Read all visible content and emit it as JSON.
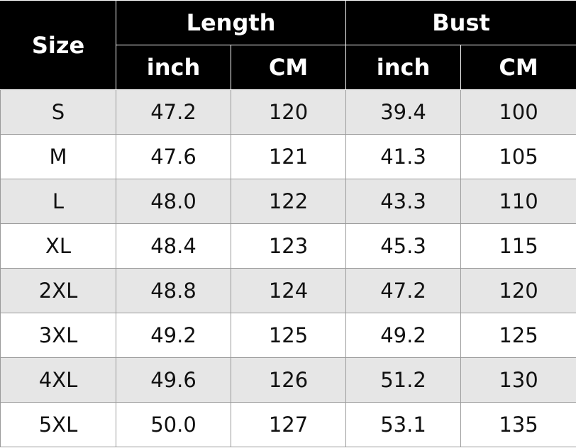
{
  "header": {
    "size": "Size",
    "groups": [
      "Length",
      "Bust"
    ],
    "units": [
      "inch",
      "CM",
      "inch",
      "CM"
    ]
  },
  "table": {
    "rows": [
      [
        "S",
        "47.2",
        "120",
        "39.4",
        "100"
      ],
      [
        "M",
        "47.6",
        "121",
        "41.3",
        "105"
      ],
      [
        "L",
        "48.0",
        "122",
        "43.3",
        "110"
      ],
      [
        "XL",
        "48.4",
        "123",
        "45.3",
        "115"
      ],
      [
        "2XL",
        "48.8",
        "124",
        "47.2",
        "120"
      ],
      [
        "3XL",
        "49.2",
        "125",
        "49.2",
        "125"
      ],
      [
        "4XL",
        "49.6",
        "126",
        "51.2",
        "130"
      ],
      [
        "5XL",
        "50.0",
        "127",
        "53.1",
        "135"
      ]
    ]
  }
}
